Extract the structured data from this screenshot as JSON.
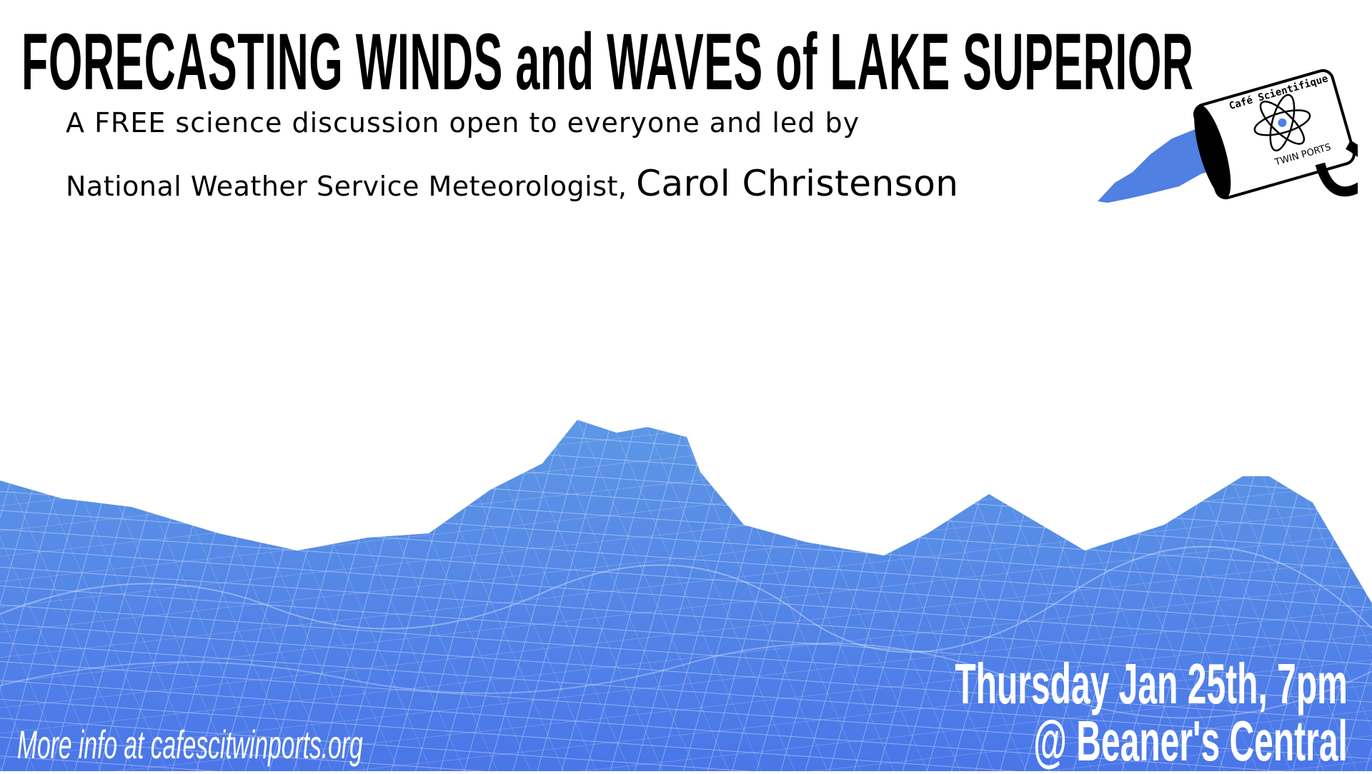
{
  "poster": {
    "title": "FORECASTING WINDS and WAVES of LAKE SUPERIOR",
    "subtitle_line1": "A FREE science discussion open to everyone and led by",
    "subtitle_line2_prefix": "National Weather Service Meteorologist,",
    "speaker": "Carol Christenson",
    "date_time": "Thursday Jan 25th, 7pm",
    "venue": "@ Beaner's Central",
    "more_info": "More info at cafescitwinports.org"
  },
  "logo": {
    "top_text": "Café Scientifique",
    "bottom_text": "TWIN PORTS"
  },
  "colors": {
    "wave_blue": "#5384e6",
    "lake_blue": "#4f80e2",
    "text_dark": "#000000",
    "text_light": "#ffffff"
  }
}
